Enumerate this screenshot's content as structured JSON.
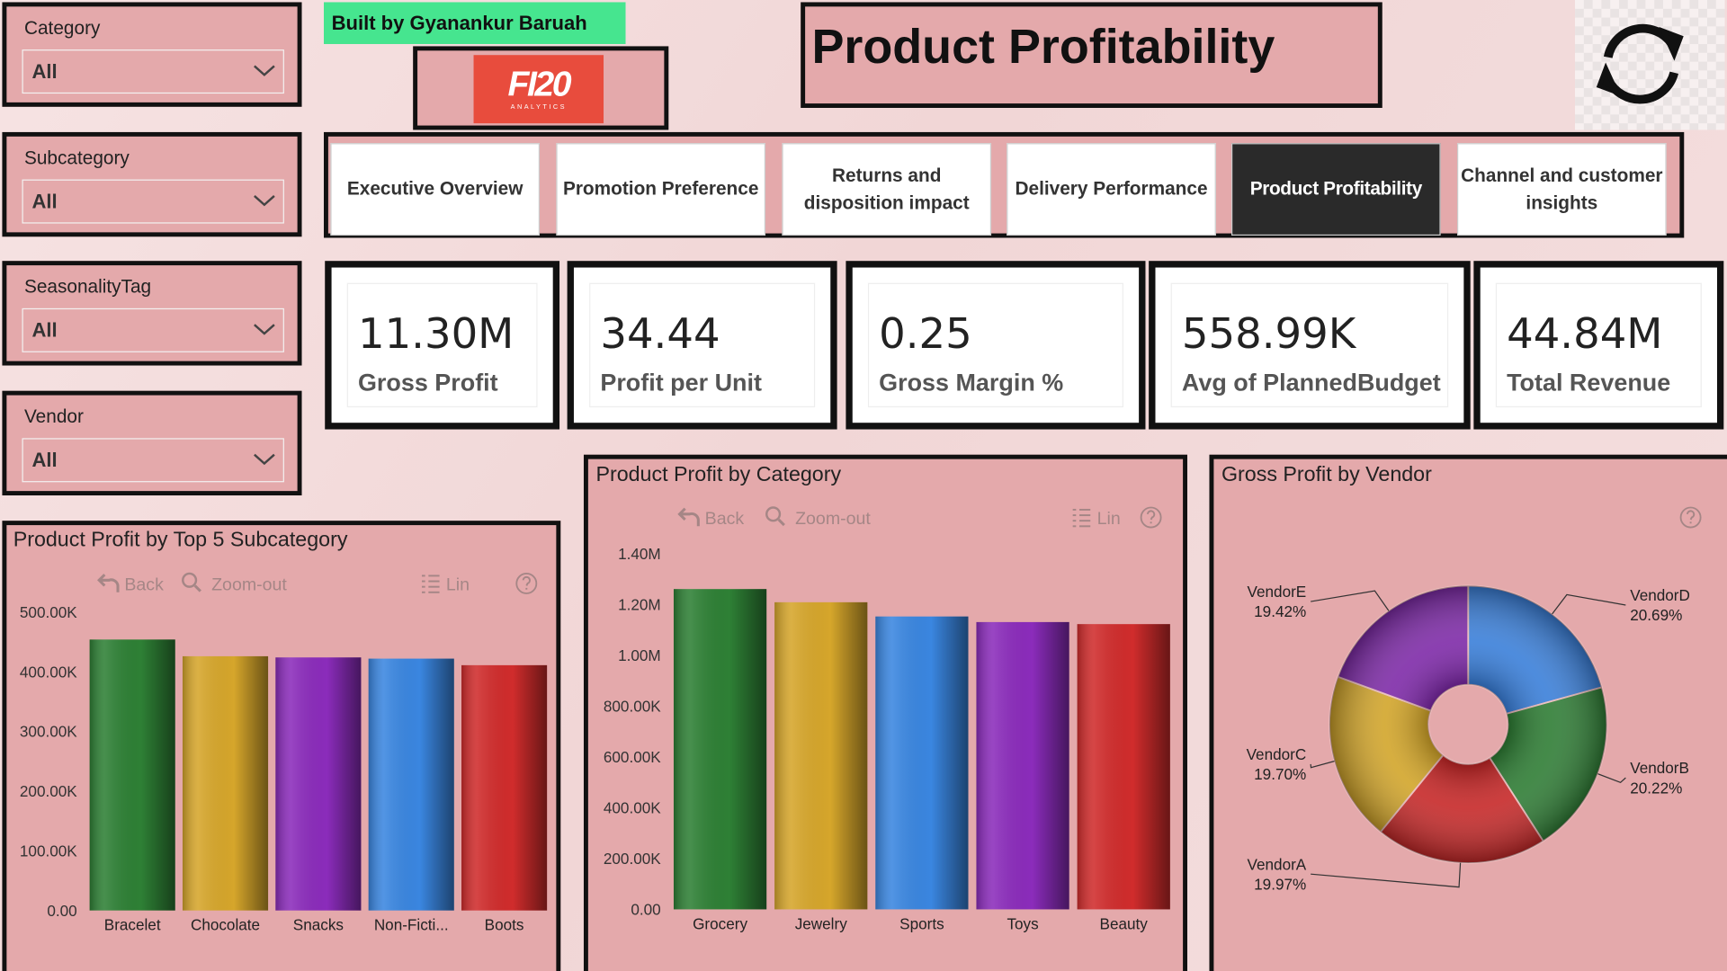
{
  "header": {
    "credit": "Built by Gyanankur Baruah",
    "logo": "FI20",
    "logo_sub": "ANALYTICS",
    "title": "Product Profitability"
  },
  "slicers": [
    {
      "label": "Category",
      "value": "All"
    },
    {
      "label": "Subcategory",
      "value": "All"
    },
    {
      "label": "SeasonalityTag",
      "value": "All"
    },
    {
      "label": "Vendor",
      "value": "All"
    }
  ],
  "tabs": [
    "Executive Overview",
    "Promotion Preference",
    "Returns and disposition impact",
    "Delivery Performance",
    "Product Profitability",
    "Channel and customer insights"
  ],
  "active_tab": 4,
  "kpis": [
    {
      "value": "11.30M",
      "label": "Gross Profit"
    },
    {
      "value": "34.44",
      "label": "Profit per Unit"
    },
    {
      "value": "0.25",
      "label": "Gross Margin %"
    },
    {
      "value": "558.99K",
      "label": "Avg of PlannedBudget"
    },
    {
      "value": "44.84M",
      "label": "Total Revenue"
    }
  ],
  "chart_data": [
    {
      "type": "bar",
      "title": "Product Profit by Top 5 Subcategory",
      "controls": [
        "Back",
        "Zoom-out",
        "Lin"
      ],
      "categories": [
        "Bracelet",
        "Chocolate",
        "Snacks",
        "Non-Ficti...",
        "Boots"
      ],
      "values": [
        454000,
        426000,
        424000,
        422000,
        411000
      ],
      "colors": [
        "#2e8035",
        "#d6a62b",
        "#8b2cbb",
        "#3a86e0",
        "#d02c2c"
      ],
      "ylim": [
        0,
        500000
      ],
      "yticks": [
        {
          "value": 0,
          "label": "0.00"
        },
        {
          "value": 100000,
          "label": "100.00K"
        },
        {
          "value": 200000,
          "label": "200.00K"
        },
        {
          "value": 300000,
          "label": "300.00K"
        },
        {
          "value": 400000,
          "label": "400.00K"
        },
        {
          "value": 500000,
          "label": "500.00K"
        }
      ]
    },
    {
      "type": "bar",
      "title": "Product Profit by Category",
      "controls": [
        "Back",
        "Zoom-out",
        "Lin"
      ],
      "categories": [
        "Grocery",
        "Jewelry",
        "Sports",
        "Toys",
        "Beauty"
      ],
      "values": [
        1261000,
        1209000,
        1153000,
        1131000,
        1123000
      ],
      "colors": [
        "#2e8035",
        "#d6a62b",
        "#3a86e0",
        "#8b2cbb",
        "#d02c2c"
      ],
      "ylim": [
        0,
        1400000
      ],
      "yticks": [
        {
          "value": 0,
          "label": "0.00"
        },
        {
          "value": 200000,
          "label": "200.00K"
        },
        {
          "value": 400000,
          "label": "400.00K"
        },
        {
          "value": 600000,
          "label": "600.00K"
        },
        {
          "value": 800000,
          "label": "800.00K"
        },
        {
          "value": 1000000,
          "label": "1.00M"
        },
        {
          "value": 1200000,
          "label": "1.20M"
        },
        {
          "value": 1400000,
          "label": "1.40M"
        }
      ]
    },
    {
      "type": "donut",
      "title": "Gross Profit by Vendor",
      "categories": [
        "VendorD",
        "VendorB",
        "VendorA",
        "VendorC",
        "VendorE"
      ],
      "values": [
        20.69,
        20.22,
        19.97,
        19.7,
        19.42
      ],
      "value_labels": [
        "20.69%",
        "20.22%",
        "19.97%",
        "19.70%",
        "19.42%"
      ],
      "colors": [
        "#3a7fd9",
        "#2f7d35",
        "#c62828",
        "#d2a52a",
        "#7e2aa8"
      ]
    }
  ]
}
